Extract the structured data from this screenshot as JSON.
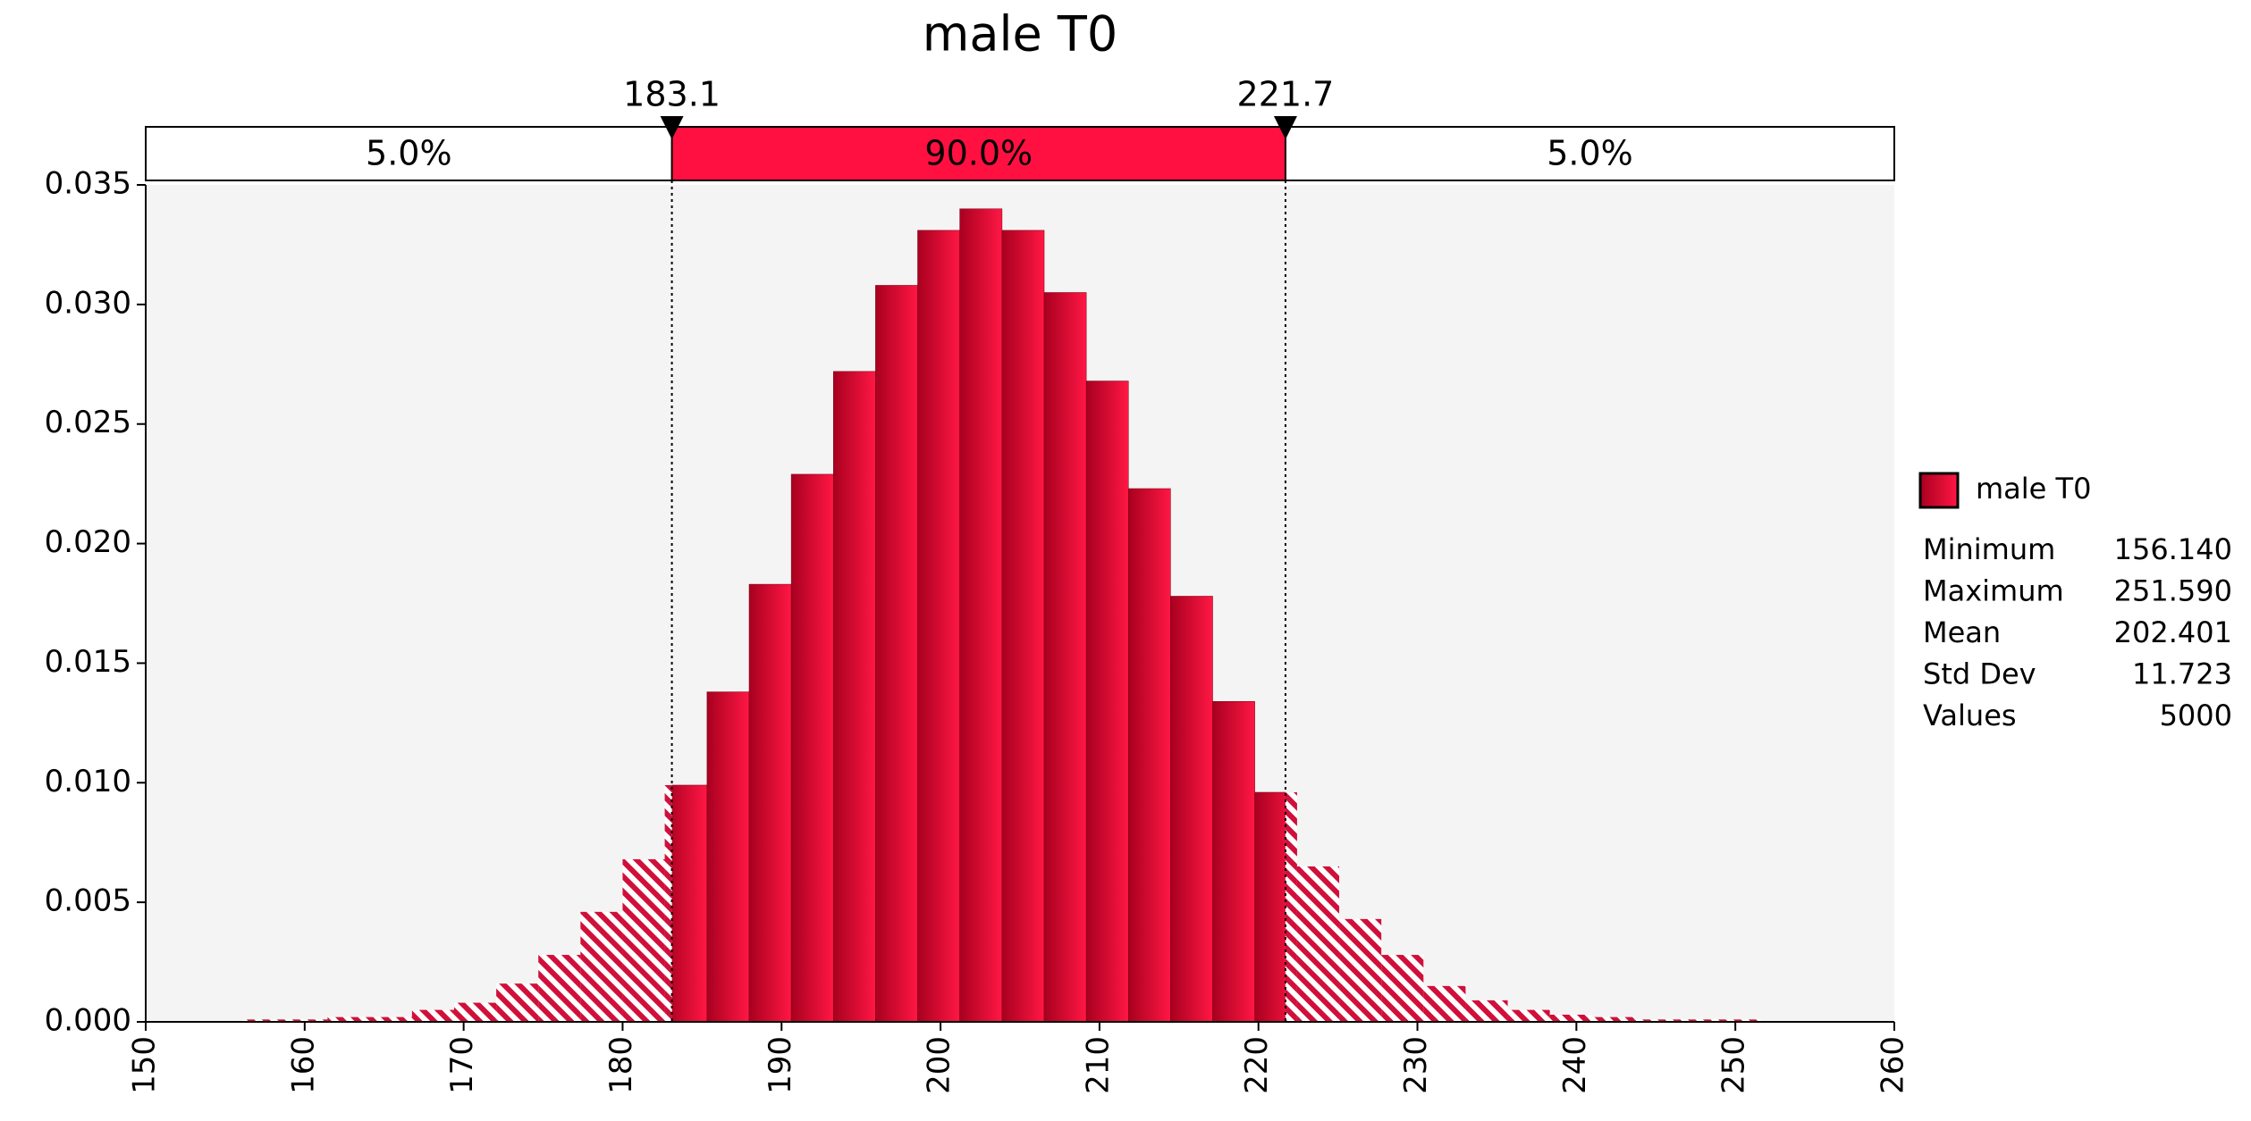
{
  "chart_data": {
    "type": "histogram",
    "title": "male T0",
    "bins": [
      156.14,
      158.79,
      161.44,
      164.09,
      166.75,
      169.4,
      172.05,
      174.7,
      177.35,
      180.0,
      182.65,
      185.31,
      187.96,
      190.61,
      193.26,
      195.91,
      198.56,
      201.21,
      203.87,
      206.52,
      209.17,
      211.82,
      214.47,
      217.12,
      219.77,
      222.43,
      225.08,
      227.73,
      230.38,
      233.03,
      235.68,
      238.33,
      240.99,
      243.64,
      246.29,
      248.94,
      251.59
    ],
    "values": [
      0.0001,
      0.0001,
      0.0002,
      0.0002,
      0.0005,
      0.0008,
      0.0016,
      0.0028,
      0.0046,
      0.0068,
      0.0099,
      0.0138,
      0.0183,
      0.0229,
      0.0272,
      0.0308,
      0.0331,
      0.034,
      0.0331,
      0.0305,
      0.0268,
      0.0223,
      0.0178,
      0.0134,
      0.0096,
      0.0065,
      0.0043,
      0.0028,
      0.0015,
      0.0009,
      0.0005,
      0.0003,
      0.0002,
      0.0001,
      0.0001,
      0.0001
    ],
    "color": "#e8103a",
    "xlim": [
      150,
      260
    ],
    "xticks": [
      150,
      160,
      170,
      180,
      190,
      200,
      210,
      220,
      230,
      240,
      250,
      260
    ],
    "ylim": [
      0,
      0.035
    ],
    "yticks": [
      {
        "value": 0,
        "label": "0.000"
      },
      {
        "value": 0.005,
        "label": "0.005"
      },
      {
        "value": 0.01,
        "label": "0.010"
      },
      {
        "value": 0.015,
        "label": "0.015"
      },
      {
        "value": 0.02,
        "label": "0.020"
      },
      {
        "value": 0.025,
        "label": "0.025"
      },
      {
        "value": 0.03,
        "label": "0.030"
      },
      {
        "value": 0.035,
        "label": "0.035"
      }
    ],
    "markers": [
      183.1,
      221.7
    ],
    "regions": [
      {
        "value": 5.0,
        "label": "5.0%"
      },
      {
        "value": 90.0,
        "label": "90.0%"
      },
      {
        "value": 5.0,
        "label": "5.0%"
      }
    ],
    "legend": "male T0",
    "stats": [
      {
        "name": "Minimum",
        "value": 156.14,
        "value_label": "156.140"
      },
      {
        "name": "Maximum",
        "value": 251.59,
        "value_label": "251.590"
      },
      {
        "name": "Mean",
        "value": 202.401,
        "value_label": "202.401"
      },
      {
        "name": "Std Dev",
        "value": 11.723,
        "value_label": "11.723"
      },
      {
        "name": "Values",
        "value": 5000
      }
    ]
  }
}
